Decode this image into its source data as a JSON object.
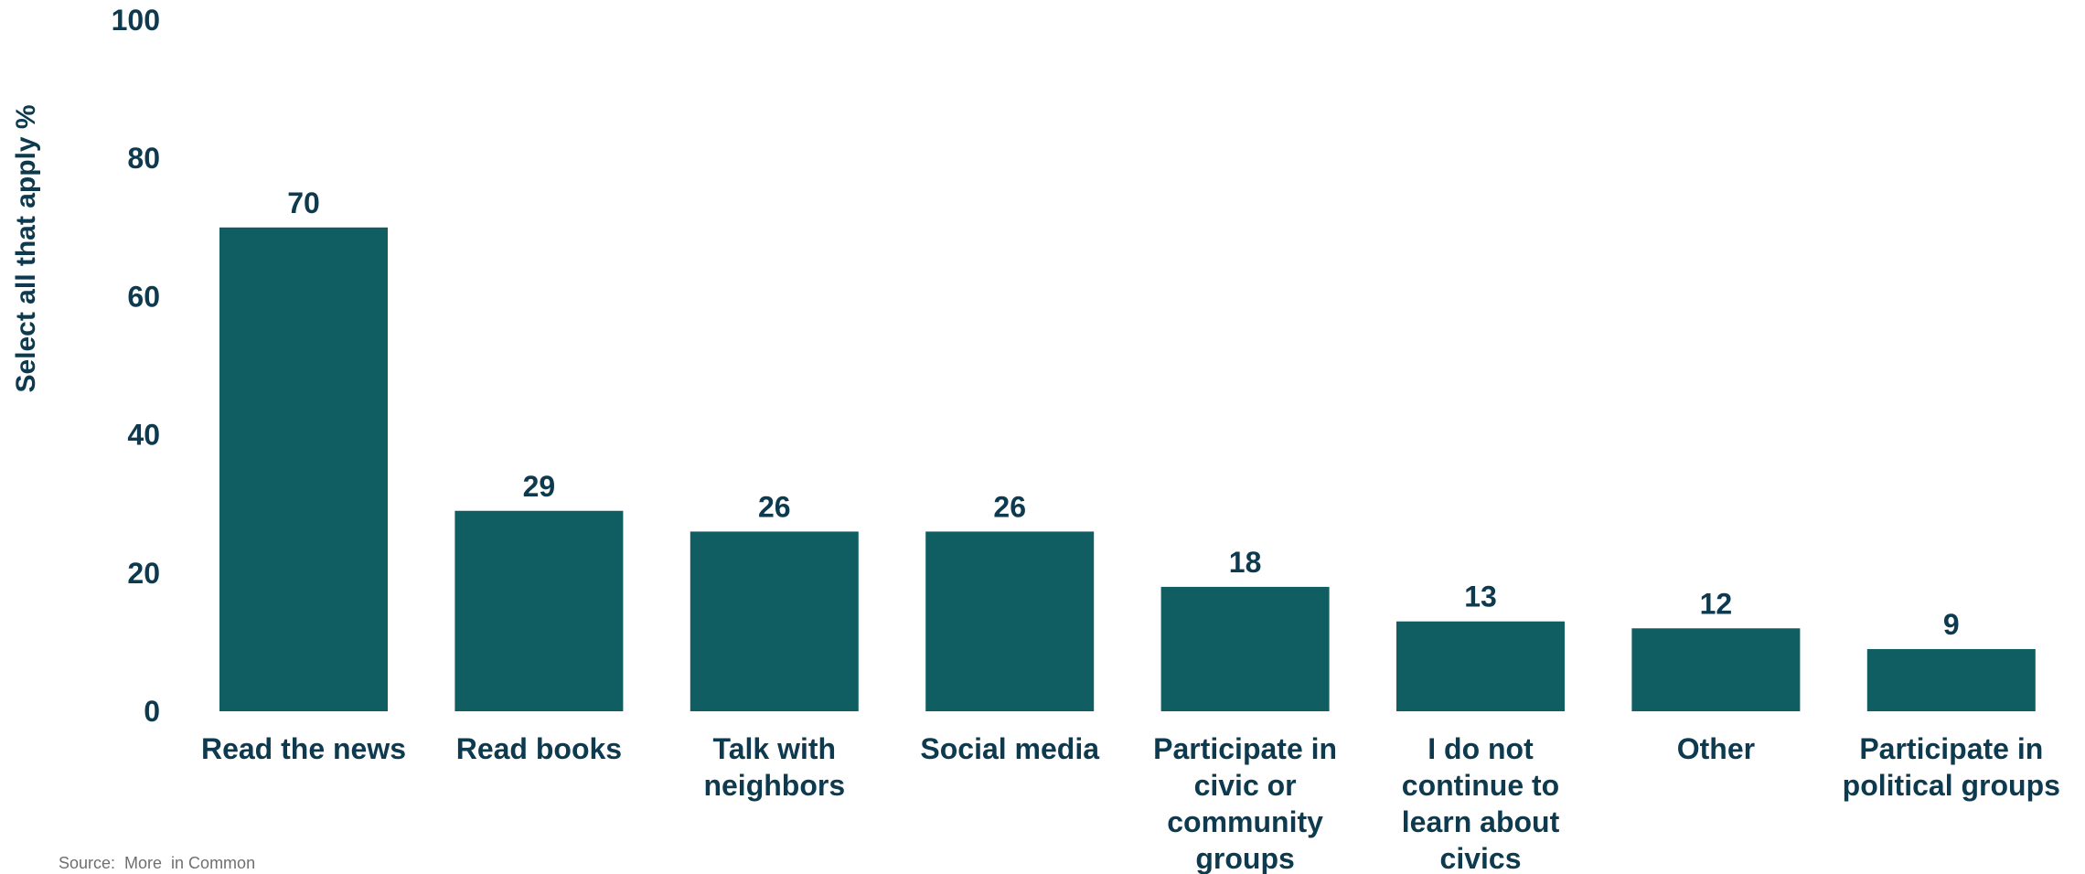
{
  "chart_data": {
    "type": "bar",
    "categories": [
      [
        "Read the news"
      ],
      [
        "Read books"
      ],
      [
        "Talk with",
        "neighbors"
      ],
      [
        "Social media"
      ],
      [
        "Participate in",
        "civic or",
        "community",
        "groups"
      ],
      [
        "I do not",
        "continue to",
        "learn about",
        "civics"
      ],
      [
        "Other"
      ],
      [
        "Participate in",
        "political groups"
      ]
    ],
    "values": [
      70,
      29,
      26,
      26,
      18,
      13,
      12,
      9
    ],
    "value_labels": [
      "70",
      "29",
      "26",
      "26",
      "18",
      "13",
      "12",
      "9"
    ],
    "ylabel": "Select all that apply %",
    "ylim": [
      0,
      100
    ],
    "yticks": [
      0,
      20,
      40,
      60,
      80,
      100
    ],
    "grid": false,
    "legend": "none",
    "bar_color": "#105e62",
    "text_color": "#0d3a4e"
  },
  "source": "Source:  More  in Common"
}
